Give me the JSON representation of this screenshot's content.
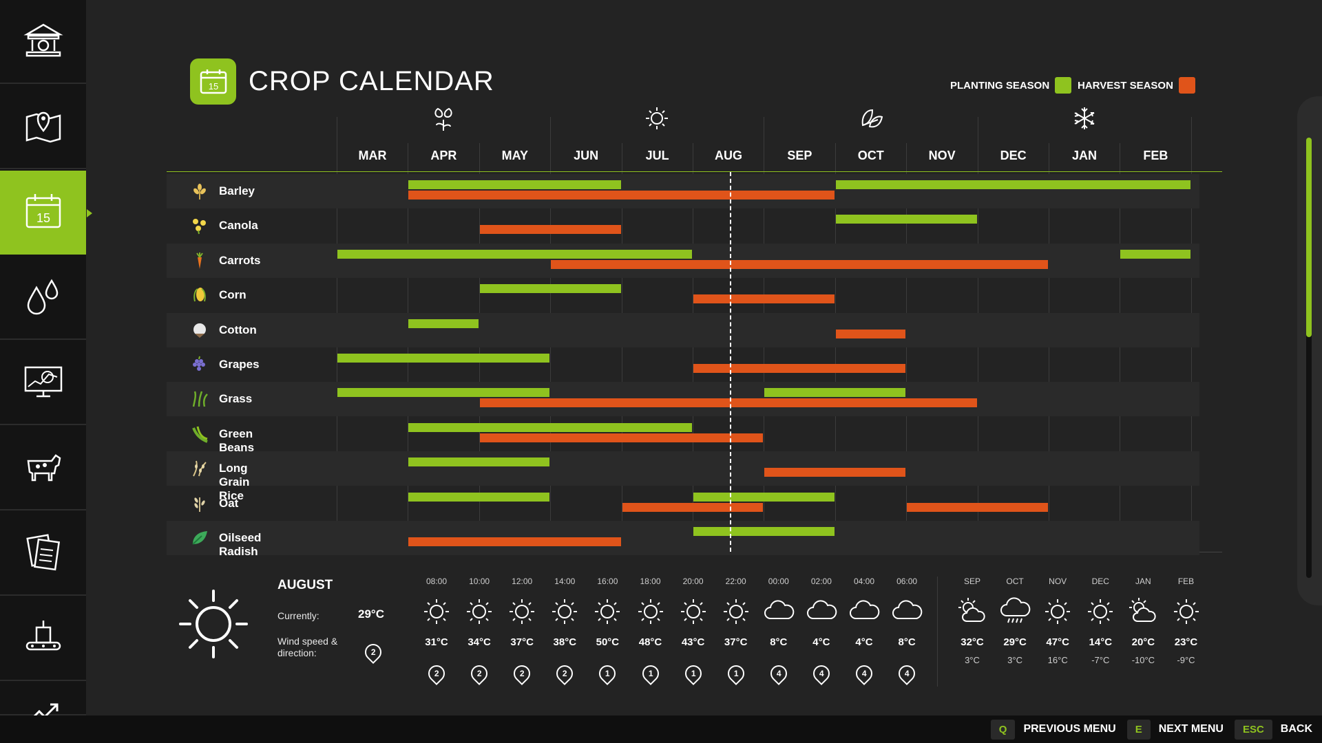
{
  "sidebar": {
    "items": [
      {
        "icon": "bank-icon",
        "name": "sidebar-item-finances"
      },
      {
        "icon": "map-pin-icon",
        "name": "sidebar-item-map"
      },
      {
        "icon": "calendar-icon",
        "name": "sidebar-item-calendar",
        "active": true
      },
      {
        "icon": "water-drops-icon",
        "name": "sidebar-item-weather"
      },
      {
        "icon": "monitor-chart-icon",
        "name": "sidebar-item-statistics"
      },
      {
        "icon": "cow-icon",
        "name": "sidebar-item-animals"
      },
      {
        "icon": "contracts-icon",
        "name": "sidebar-item-contracts"
      },
      {
        "icon": "production-icon",
        "name": "sidebar-item-production"
      },
      {
        "icon": "trend-icon",
        "name": "sidebar-item-prices"
      }
    ]
  },
  "header": {
    "title": "CROP CALENDAR",
    "icon_day": "15",
    "legend": {
      "planting_label": "PLANTING SEASON",
      "harvest_label": "HARVEST SEASON",
      "planting_color": "#8fc31f",
      "harvest_color": "#e0541a"
    }
  },
  "calendar": {
    "months": [
      "MAR",
      "APR",
      "MAY",
      "JUN",
      "JUL",
      "AUG",
      "SEP",
      "OCT",
      "NOV",
      "DEC",
      "JAN",
      "FEB"
    ],
    "season_icons": [
      {
        "month": "APR",
        "icon": "flower-icon"
      },
      {
        "month": "JUL",
        "icon": "sun-icon"
      },
      {
        "month": "OCT",
        "icon": "leaves-icon"
      },
      {
        "month": "JAN",
        "icon": "snowflake-icon"
      }
    ],
    "current_month": "AUG",
    "crops": [
      {
        "name": "Barley",
        "icon": "barley-icon",
        "plant": [
          [
            "APR",
            "JUN"
          ],
          [
            "OCT",
            "FEB"
          ]
        ],
        "harvest": [
          [
            "APR",
            "SEP"
          ]
        ]
      },
      {
        "name": "Canola",
        "icon": "canola-icon",
        "plant": [
          [
            "OCT",
            "NOV"
          ]
        ],
        "harvest": [
          [
            "MAY",
            "JUN"
          ]
        ]
      },
      {
        "name": "Carrots",
        "icon": "carrot-icon",
        "plant": [
          [
            "MAR",
            "JUL"
          ],
          [
            "FEB",
            "FEB"
          ]
        ],
        "harvest": [
          [
            "JUN",
            "DEC"
          ]
        ]
      },
      {
        "name": "Corn",
        "icon": "corn-icon",
        "plant": [
          [
            "MAY",
            "JUN"
          ]
        ],
        "harvest": [
          [
            "AUG",
            "SEP"
          ]
        ]
      },
      {
        "name": "Cotton",
        "icon": "cotton-icon",
        "plant": [
          [
            "APR",
            "APR"
          ]
        ],
        "harvest": [
          [
            "OCT",
            "OCT"
          ]
        ]
      },
      {
        "name": "Grapes",
        "icon": "grapes-icon",
        "plant": [
          [
            "MAR",
            "MAY"
          ]
        ],
        "harvest": [
          [
            "AUG",
            "OCT"
          ]
        ]
      },
      {
        "name": "Grass",
        "icon": "grass-icon",
        "plant": [
          [
            "MAR",
            "MAY"
          ],
          [
            "SEP",
            "OCT"
          ]
        ],
        "harvest": [
          [
            "MAY",
            "NOV"
          ]
        ]
      },
      {
        "name": "Green Beans",
        "icon": "green-beans-icon",
        "plant": [
          [
            "APR",
            "JUL"
          ]
        ],
        "harvest": [
          [
            "MAY",
            "AUG"
          ]
        ]
      },
      {
        "name": "Long Grain Rice",
        "icon": "rice-icon",
        "plant": [
          [
            "APR",
            "MAY"
          ]
        ],
        "harvest": [
          [
            "SEP",
            "OCT"
          ]
        ]
      },
      {
        "name": "Oat",
        "icon": "oat-icon",
        "plant": [
          [
            "APR",
            "MAY"
          ],
          [
            "AUG",
            "SEP"
          ]
        ],
        "harvest": [
          [
            "JUL",
            "AUG"
          ],
          [
            "NOV",
            "DEC"
          ]
        ]
      },
      {
        "name": "Oilseed Radish",
        "icon": "radish-icon",
        "plant": [
          [
            "AUG",
            "SEP"
          ]
        ],
        "harvest": [
          [
            "APR",
            "JUN"
          ]
        ]
      }
    ]
  },
  "weather": {
    "month": "AUGUST",
    "currently_label": "Currently:",
    "current_temp": "29°C",
    "wind_label": "Wind speed & direction:",
    "current_wind": "2",
    "current_icon": "sun-icon",
    "hourly": [
      {
        "time": "08:00",
        "icon": "sun",
        "temp": "31°C",
        "wind": "2"
      },
      {
        "time": "10:00",
        "icon": "sun",
        "temp": "34°C",
        "wind": "2"
      },
      {
        "time": "12:00",
        "icon": "sun",
        "temp": "37°C",
        "wind": "2"
      },
      {
        "time": "14:00",
        "icon": "sun",
        "temp": "38°C",
        "wind": "2"
      },
      {
        "time": "16:00",
        "icon": "sun",
        "temp": "50°C",
        "wind": "1"
      },
      {
        "time": "18:00",
        "icon": "sun",
        "temp": "48°C",
        "wind": "1"
      },
      {
        "time": "20:00",
        "icon": "sun",
        "temp": "43°C",
        "wind": "1"
      },
      {
        "time": "22:00",
        "icon": "sun",
        "temp": "37°C",
        "wind": "1"
      },
      {
        "time": "00:00",
        "icon": "cloud",
        "temp": "8°C",
        "wind": "4"
      },
      {
        "time": "02:00",
        "icon": "cloud",
        "temp": "4°C",
        "wind": "4"
      },
      {
        "time": "04:00",
        "icon": "cloud",
        "temp": "4°C",
        "wind": "4"
      },
      {
        "time": "06:00",
        "icon": "cloud",
        "temp": "8°C",
        "wind": "4"
      }
    ],
    "monthly": [
      {
        "month": "SEP",
        "icon": "partly-cloudy",
        "high": "32°C",
        "low": "3°C"
      },
      {
        "month": "OCT",
        "icon": "rain-cloud",
        "high": "29°C",
        "low": "3°C"
      },
      {
        "month": "NOV",
        "icon": "sun",
        "high": "47°C",
        "low": "16°C"
      },
      {
        "month": "DEC",
        "icon": "sun",
        "high": "14°C",
        "low": "-7°C"
      },
      {
        "month": "JAN",
        "icon": "partly-cloudy",
        "high": "20°C",
        "low": "-10°C"
      },
      {
        "month": "FEB",
        "icon": "sun",
        "high": "23°C",
        "low": "-9°C"
      }
    ]
  },
  "footer": {
    "keys": [
      {
        "key": "Q",
        "label": "PREVIOUS MENU"
      },
      {
        "key": "E",
        "label": "NEXT MENU"
      },
      {
        "key": "ESC",
        "label": "BACK"
      }
    ]
  }
}
